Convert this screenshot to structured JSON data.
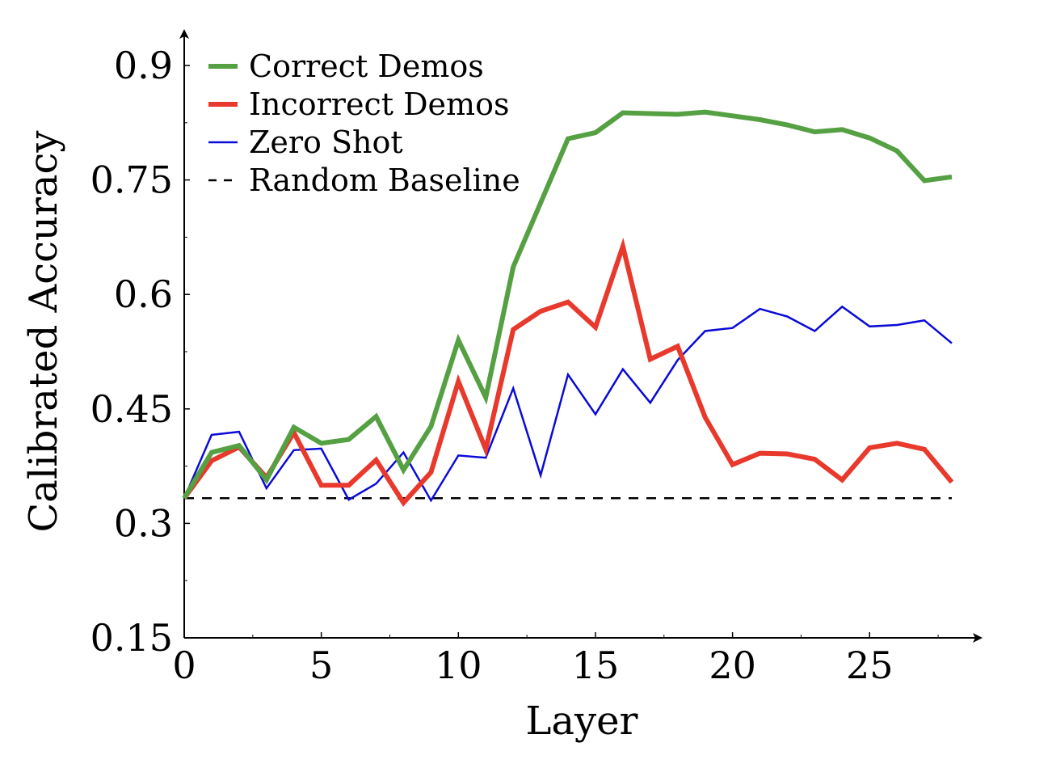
{
  "chart_data": {
    "type": "line",
    "title": "",
    "xlabel": "Layer",
    "ylabel": "Calibrated Accuracy",
    "xlim": [
      0,
      29
    ],
    "ylim": [
      0.15,
      0.93
    ],
    "x_ticks": [
      0,
      5,
      10,
      15,
      20,
      25
    ],
    "x_tick_labels": [
      "0",
      "5",
      "10",
      "15",
      "20",
      "25"
    ],
    "y_ticks": [
      0.15,
      0.3,
      0.45,
      0.6,
      0.75,
      0.9
    ],
    "y_tick_labels": [
      "0.15",
      "0.3",
      "0.45",
      "0.6",
      "0.75",
      "0.9"
    ],
    "grid": false,
    "legend_position": "top-left",
    "x": [
      0,
      1,
      2,
      3,
      4,
      5,
      6,
      7,
      8,
      9,
      10,
      11,
      12,
      13,
      14,
      15,
      16,
      17,
      18,
      19,
      20,
      21,
      22,
      23,
      24,
      25,
      26,
      27,
      28
    ],
    "series": [
      {
        "name": "Correct Demos",
        "color": "#55a042",
        "style": "thick",
        "values": [
          0.333,
          0.393,
          0.402,
          0.357,
          0.426,
          0.405,
          0.41,
          0.44,
          0.37,
          0.427,
          0.54,
          0.465,
          0.636,
          0.72,
          0.804,
          0.812,
          0.838,
          0.837,
          0.836,
          0.839,
          0.834,
          0.829,
          0.822,
          0.813,
          0.816,
          0.805,
          0.788,
          0.749,
          0.754
        ]
      },
      {
        "name": "Incorrect Demos",
        "color": "#e8392c",
        "style": "thick",
        "values": [
          0.333,
          0.382,
          0.4,
          0.36,
          0.419,
          0.35,
          0.35,
          0.383,
          0.327,
          0.367,
          0.486,
          0.397,
          0.554,
          0.578,
          0.59,
          0.557,
          0.663,
          0.515,
          0.532,
          0.439,
          0.377,
          0.392,
          0.391,
          0.384,
          0.357,
          0.399,
          0.405,
          0.397,
          0.354
        ]
      },
      {
        "name": "Zero Shot",
        "color": "#0a0ad8",
        "style": "thin",
        "values": [
          0.333,
          0.416,
          0.42,
          0.346,
          0.396,
          0.398,
          0.331,
          0.352,
          0.393,
          0.33,
          0.389,
          0.386,
          0.477,
          0.363,
          0.495,
          0.443,
          0.502,
          0.458,
          0.514,
          0.552,
          0.556,
          0.581,
          0.571,
          0.552,
          0.584,
          0.558,
          0.56,
          0.566,
          0.536
        ]
      },
      {
        "name": "Random Baseline",
        "color": "#000000",
        "style": "dashed",
        "values": [
          0.333,
          0.333,
          0.333,
          0.333,
          0.333,
          0.333,
          0.333,
          0.333,
          0.333,
          0.333,
          0.333,
          0.333,
          0.333,
          0.333,
          0.333,
          0.333,
          0.333,
          0.333,
          0.333,
          0.333,
          0.333,
          0.333,
          0.333,
          0.333,
          0.333,
          0.333,
          0.333,
          0.333,
          0.333
        ]
      }
    ]
  }
}
